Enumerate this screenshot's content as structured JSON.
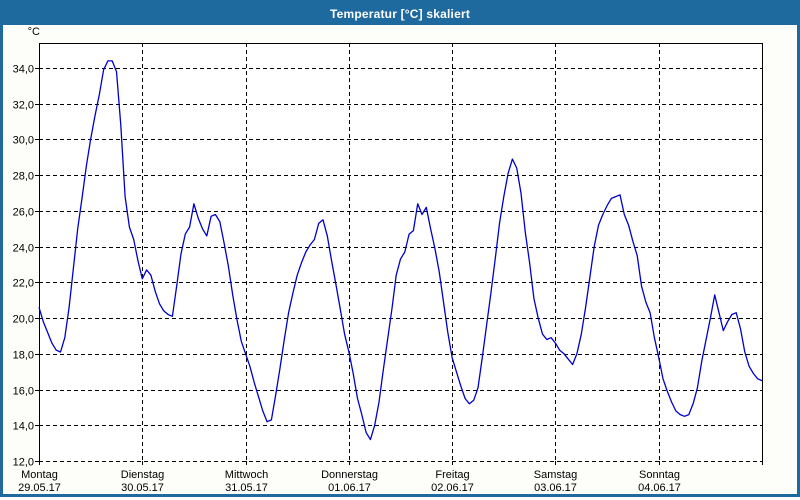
{
  "window": {
    "title": "Temperatur [°C] skaliert",
    "title_bar_color": "#1e699e",
    "border_color": "#1e699e",
    "content_background": "#fdfdfa"
  },
  "chart_data": {
    "type": "line",
    "title": "Temperatur [°C] skaliert",
    "ylabel": "°C",
    "unit_label": "°C",
    "ylim": [
      12.0,
      35.4
    ],
    "y_tick_values": [
      34,
      32,
      30,
      28,
      26,
      24,
      22,
      20,
      18,
      16,
      14,
      12
    ],
    "y_tick_labels": [
      "34,0",
      "32,0",
      "30,0",
      "28,0",
      "26,0",
      "24,0",
      "22,0",
      "20,0",
      "18,0",
      "16,0",
      "14,0",
      "12,0"
    ],
    "grid": "dashed-black",
    "legend_position": "none",
    "line_color": "#0000cc",
    "x_axis": {
      "sampling": "hourly",
      "range_hours": [
        0,
        168
      ],
      "day_ticks": [
        {
          "name": "Montag",
          "date": "29.05.17"
        },
        {
          "name": "Dienstag",
          "date": "30.05.17"
        },
        {
          "name": "Mittwoch",
          "date": "31.05.17"
        },
        {
          "name": "Donnerstag",
          "date": "01.06.17"
        },
        {
          "name": "Freitag",
          "date": "02.06.17"
        },
        {
          "name": "Samstag",
          "date": "03.06.17"
        },
        {
          "name": "Sonntag",
          "date": "04.06.17"
        }
      ]
    },
    "series": [
      {
        "name": "Temperatur [°C]",
        "color": "#0000cc",
        "values": [
          20.6,
          19.8,
          19.2,
          18.6,
          18.2,
          18.1,
          18.9,
          20.6,
          22.8,
          25.0,
          26.7,
          28.5,
          30.0,
          31.3,
          32.5,
          33.9,
          34.4,
          34.4,
          33.8,
          30.8,
          26.8,
          25.1,
          24.4,
          23.2,
          22.2,
          22.7,
          22.4,
          21.5,
          20.8,
          20.4,
          20.2,
          20.1,
          21.8,
          23.6,
          24.7,
          25.1,
          26.4,
          25.6,
          25.0,
          24.6,
          25.7,
          25.8,
          25.4,
          24.2,
          22.9,
          21.3,
          19.9,
          18.7,
          18.0,
          17.3,
          16.4,
          15.6,
          14.8,
          14.2,
          14.3,
          15.7,
          17.2,
          18.8,
          20.3,
          21.4,
          22.4,
          23.1,
          23.7,
          24.1,
          24.4,
          25.3,
          25.5,
          24.6,
          23.2,
          21.9,
          20.5,
          19.1,
          18.1,
          16.9,
          15.5,
          14.6,
          13.6,
          13.2,
          14.0,
          15.3,
          17.1,
          18.8,
          20.5,
          22.4,
          23.3,
          23.7,
          24.7,
          24.9,
          26.4,
          25.8,
          26.2,
          25.0,
          23.9,
          22.6,
          20.9,
          19.2,
          17.8,
          17.0,
          16.2,
          15.5,
          15.2,
          15.4,
          16.1,
          17.8,
          19.6,
          21.4,
          23.3,
          25.3,
          26.8,
          28.1,
          28.9,
          28.4,
          27.0,
          24.8,
          23.1,
          21.1,
          20.0,
          19.1,
          18.8,
          18.9,
          18.6,
          18.2,
          18.0,
          17.7,
          17.4,
          18.0,
          19.1,
          20.6,
          22.3,
          24.0,
          25.2,
          25.8,
          26.3,
          26.7,
          26.8,
          26.9,
          25.8,
          25.2,
          24.3,
          23.5,
          21.8,
          20.9,
          20.3,
          18.9,
          17.8,
          16.6,
          15.9,
          15.3,
          14.8,
          14.6,
          14.5,
          14.6,
          15.2,
          16.1,
          17.6,
          18.8,
          20.0,
          21.3,
          20.3,
          19.3,
          19.8,
          20.2,
          20.3,
          19.4,
          18.1,
          17.3,
          16.9,
          16.6,
          16.5
        ]
      }
    ]
  }
}
